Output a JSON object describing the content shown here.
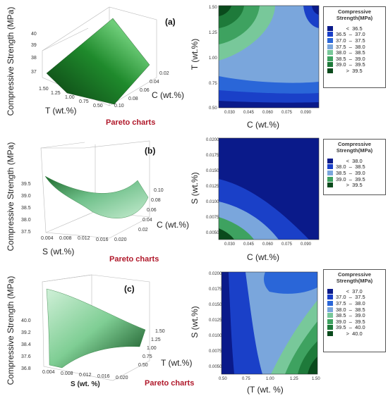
{
  "panels": [
    {
      "id": "a",
      "label": "(a)",
      "pareto": "Pareto charts",
      "surface": {
        "zlabel": "Compressive Strength (MPa)",
        "xlabel": "C (wt.%)",
        "ylabel": "T (wt.%)",
        "zticks": [
          "40",
          "39",
          "38",
          "37"
        ],
        "xticks": [
          "0.02",
          "0.04",
          "0.06",
          "0.08",
          "0.10"
        ],
        "yticks": [
          "1.50",
          "1.25",
          "1.00",
          "0.75",
          "0.50"
        ]
      },
      "contour": {
        "xlabel": "C (wt.%)",
        "ylabel": "T (wt.%)",
        "xticks": [
          "0.030",
          "0.045",
          "0.060",
          "0.075",
          "0.090"
        ],
        "yticks": [
          "1.50",
          "1.25",
          "1.00",
          "0.75",
          "0.50"
        ]
      },
      "legend": {
        "title": [
          "Compressive",
          "Strength(MPa)"
        ],
        "rows": [
          {
            "color": "#0a1a8a",
            "text": "       <  36.5"
          },
          {
            "color": "#1a40c8",
            "text": "36.5  –  37.0"
          },
          {
            "color": "#2a66d8",
            "text": "37.0  –  37.5"
          },
          {
            "color": "#7aa6dc",
            "text": "37.5  –  38.0"
          },
          {
            "color": "#78c89a",
            "text": "38.0  –  38.5"
          },
          {
            "color": "#3ea260",
            "text": "38.5  –  39.0"
          },
          {
            "color": "#1e7a3a",
            "text": "39.0  –  39.5"
          },
          {
            "color": "#0a4a1c",
            "text": "       >  39.5"
          }
        ]
      }
    },
    {
      "id": "b",
      "label": "(b)",
      "pareto": "Pareto charts",
      "surface": {
        "zlabel": "Compressive Strength (MPa)",
        "xlabel": "S (wt.%)",
        "ylabel": "C (wt.%)",
        "zticks": [
          "39.5",
          "39.0",
          "38.5",
          "38.0",
          "37.5"
        ],
        "xticks": [
          "0.004",
          "0.008",
          "0.012",
          "0.016",
          "0.020"
        ],
        "yticks": [
          "0.10",
          "0.08",
          "0.06",
          "0.04",
          "0.02"
        ]
      },
      "contour": {
        "xlabel": "C (wt.%)",
        "ylabel": "S (wt.%)",
        "xticks": [
          "0.030",
          "0.045",
          "0.060",
          "0.075",
          "0.090"
        ],
        "yticks": [
          "0.0200",
          "0.0175",
          "0.0150",
          "0.0125",
          "0.0100",
          "0.0075",
          "0.0050"
        ]
      },
      "legend": {
        "title": [
          "Compressive",
          "Strength(MPa)"
        ],
        "rows": [
          {
            "color": "#0a1a8a",
            "text": "       <  38.0"
          },
          {
            "color": "#1a40c8",
            "text": "38.0  –  38.5"
          },
          {
            "color": "#7aa6dc",
            "text": "38.5  –  39.0"
          },
          {
            "color": "#3ea260",
            "text": "39.0  –  39.5"
          },
          {
            "color": "#0a4a1c",
            "text": "       >  39.5"
          }
        ]
      }
    },
    {
      "id": "c",
      "label": "(c)",
      "pareto": "Pareto charts",
      "surface": {
        "zlabel": "Compressive Strength (MPa)",
        "xlabel": "S (wt. %)",
        "ylabel": "T (wt.%)",
        "zticks": [
          "40.0",
          "39.2",
          "38.4",
          "37.6",
          "36.8"
        ],
        "xticks": [
          "0.004",
          "0.008",
          "0.012",
          "0.016",
          "0.020"
        ],
        "yticks": [
          "1.50",
          "1.25",
          "1.00",
          "0.75",
          "0.50"
        ]
      },
      "contour": {
        "xlabel": "(T (wt. %)",
        "ylabel": "S (wt.%)",
        "xticks": [
          "0.50",
          "0.75",
          "1.00",
          "1.25",
          "1.50"
        ],
        "yticks": [
          "0.0200",
          "0.0175",
          "0.0150",
          "0.0125",
          "0.0100",
          "0.0075",
          "0.0050"
        ]
      },
      "legend": {
        "title": [
          "Compressive",
          "Strength(MPa)"
        ],
        "rows": [
          {
            "color": "#0a1a8a",
            "text": "       <  37.0"
          },
          {
            "color": "#1a40c8",
            "text": "37.0  –  37.5"
          },
          {
            "color": "#2a66d8",
            "text": "37.5  –  38.0"
          },
          {
            "color": "#7aa6dc",
            "text": "38.0  –  38.5"
          },
          {
            "color": "#78c89a",
            "text": "38.5  –  39.0"
          },
          {
            "color": "#3ea260",
            "text": "39.0  –  39.5"
          },
          {
            "color": "#1e7a3a",
            "text": "39.5  –  40.0"
          },
          {
            "color": "#0a4a1c",
            "text": "       >  40.0"
          }
        ]
      }
    }
  ],
  "chart_data": [
    {
      "type": "heatmap",
      "title": "",
      "xlabel": "C (wt.%)",
      "ylabel": "T (wt.%)",
      "xlim": [
        0.02,
        0.1
      ],
      "ylim": [
        0.5,
        1.5
      ],
      "legend_title": "Compressive Strength(MPa)",
      "levels": [
        "< 36.5",
        "36.5 – 37.0",
        "37.0 – 37.5",
        "37.5 – 38.0",
        "38.0 – 38.5",
        "38.5 – 39.0",
        "39.0 – 39.5",
        "> 39.5"
      ],
      "legend_position": "right"
    },
    {
      "type": "heatmap",
      "title": "",
      "xlabel": "C (wt.%)",
      "ylabel": "S (wt.%)",
      "xlim": [
        0.02,
        0.1
      ],
      "ylim": [
        0.004,
        0.02
      ],
      "legend_title": "Compressive Strength(MPa)",
      "levels": [
        "< 38.0",
        "38.0 – 38.5",
        "38.5 – 39.0",
        "39.0 – 39.5",
        "> 39.5"
      ],
      "legend_position": "right"
    },
    {
      "type": "heatmap",
      "title": "",
      "xlabel": "(T (wt. %)",
      "ylabel": "S (wt.%)",
      "xlim": [
        0.5,
        1.5
      ],
      "ylim": [
        0.004,
        0.02
      ],
      "legend_title": "Compressive Strength(MPa)",
      "levels": [
        "< 37.0",
        "37.0 – 37.5",
        "37.5 – 38.0",
        "38.0 – 38.5",
        "38.5 – 39.0",
        "39.0 – 39.5",
        "39.5 – 40.0",
        "> 40.0"
      ],
      "legend_position": "right"
    }
  ]
}
